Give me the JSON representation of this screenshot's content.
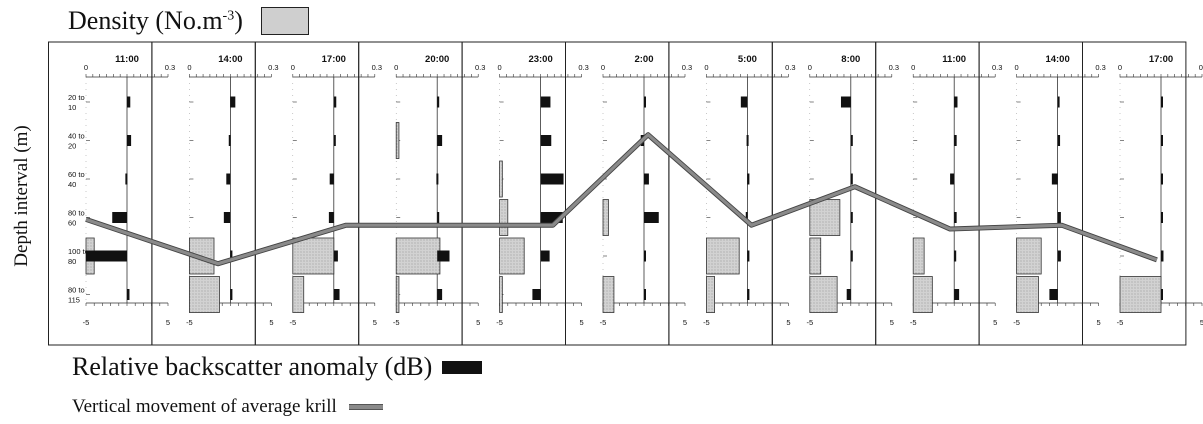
{
  "legend": {
    "density_label": "Density (No.m",
    "density_exp": "-3",
    "density_close": ")",
    "backscatter_label": "Relative backscatter anomaly (dB)",
    "movement_label": "Vertical movement of average krill"
  },
  "colors": {
    "density_fill": "#cfcfcf",
    "backscatter_fill": "#111111",
    "movement_line": "#8a8a8a"
  },
  "chart_data": {
    "type": "bar",
    "ylabel": "Depth interval (m)",
    "depth_labels": [
      [
        "20 to",
        "10"
      ],
      [
        "40 to",
        "20"
      ],
      [
        "60 to",
        "40"
      ],
      [
        "80 to",
        "60"
      ],
      [
        "100 to",
        "80"
      ],
      [
        "80 to",
        "115"
      ]
    ],
    "density_axis": {
      "min": 0,
      "max": 0.3,
      "tick_labels": [
        "0",
        "0.3"
      ]
    },
    "backscatter_axis": {
      "min": -5,
      "max": 5,
      "tick_labels": [
        "-5",
        "5"
      ]
    },
    "times": [
      "11:00",
      "14:00",
      "17:00",
      "20:00",
      "23:00",
      "2:00",
      "5:00",
      "8:00",
      "11:00",
      "14:00",
      "17:00"
    ],
    "backscatter": [
      [
        0.4,
        0.5,
        -0.2,
        -1.8,
        -5.0,
        0.3
      ],
      [
        0.6,
        -0.2,
        -0.5,
        -0.8,
        0.2,
        0.2
      ],
      [
        0.3,
        0.2,
        -0.5,
        -0.6,
        0.5,
        0.7
      ],
      [
        0.2,
        0.6,
        -0.1,
        0.2,
        1.5,
        0.6
      ],
      [
        1.2,
        1.3,
        2.8,
        2.7,
        1.1,
        -1.0
      ],
      [
        0.1,
        -0.4,
        0.6,
        1.8,
        0.0,
        0.1
      ],
      [
        -0.8,
        -0.1,
        0.1,
        -0.2,
        0.2,
        0.2
      ],
      [
        -1.2,
        0.2,
        0.2,
        0.1,
        0.1,
        -0.5
      ],
      [
        0.4,
        0.3,
        -0.5,
        0.3,
        0.2,
        0.6
      ],
      [
        0.2,
        0.3,
        -0.7,
        0.4,
        0.4,
        -1.0
      ],
      [
        0.2,
        0.2,
        0.2,
        0.2,
        0.3,
        0.2
      ]
    ],
    "density": [
      [
        0,
        0,
        0,
        0,
        0.03,
        0
      ],
      [
        0,
        0,
        0,
        0,
        0.09,
        0.11
      ],
      [
        0,
        0,
        0,
        0,
        0.15,
        0.04
      ],
      [
        0,
        0.01,
        0,
        0,
        0.16,
        0.01
      ],
      [
        0,
        0,
        0.01,
        0.03,
        0.09,
        0.01
      ],
      [
        0,
        0,
        0,
        0.02,
        0,
        0.04
      ],
      [
        0,
        0,
        0,
        0,
        0.12,
        0.03
      ],
      [
        0,
        0,
        0,
        0.11,
        0.04,
        0.1
      ],
      [
        0,
        0,
        0,
        0,
        0.04,
        0.07
      ],
      [
        0,
        0,
        0,
        0,
        0.09,
        0.08
      ],
      [
        0,
        0,
        0,
        0,
        0,
        0.15
      ]
    ],
    "movement_depth_index": [
      4.05,
      5.2,
      4.2,
      4.2,
      4.2,
      1.85,
      4.2,
      3.2,
      4.3,
      4.2,
      5.1
    ],
    "movement_x_dB": [
      -5,
      -1.5,
      1.5,
      3.0,
      1.5,
      0.5,
      0.5,
      0.5,
      -0.5,
      0.5,
      -0.5
    ]
  }
}
